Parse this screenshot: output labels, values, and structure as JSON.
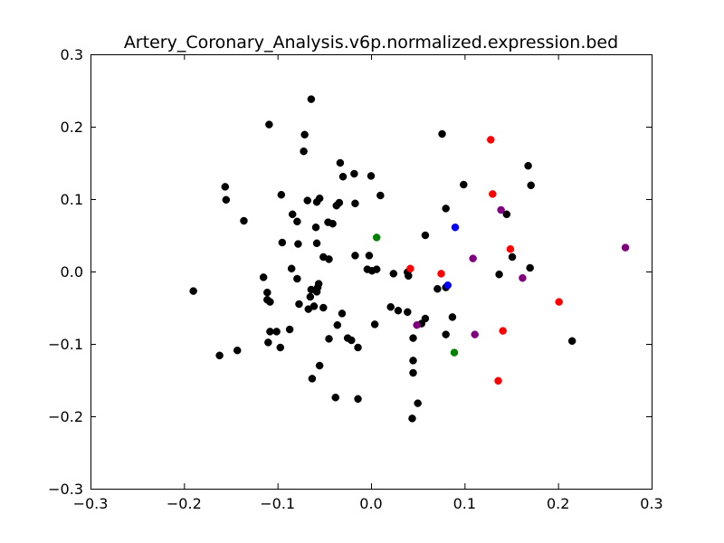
{
  "chart_data": {
    "type": "scatter",
    "title": "Artery_Coronary_Analysis.v6p.normalized.expression.bed",
    "xlabel": "",
    "ylabel": "",
    "xlim": [
      -0.3,
      0.3
    ],
    "ylim": [
      -0.3,
      0.3
    ],
    "grid": false,
    "legend": "none",
    "x_ticks": [
      -0.3,
      -0.2,
      -0.1,
      0.0,
      0.1,
      0.2,
      0.3
    ],
    "y_ticks": [
      -0.3,
      -0.2,
      -0.1,
      0.0,
      0.1,
      0.2,
      0.3
    ],
    "x_tick_labels": [
      "−0.3",
      "−0.2",
      "−0.1",
      "0.0",
      "0.1",
      "0.2",
      "0.3"
    ],
    "y_tick_labels": [
      "−0.3",
      "−0.2",
      "−0.1",
      "0.0",
      "0.1",
      "0.2",
      "0.3"
    ],
    "series": [
      {
        "color": "#000000",
        "points": [
          [
            -0.064,
            0.238
          ],
          [
            -0.109,
            0.203
          ],
          [
            0.076,
            0.19
          ],
          [
            -0.071,
            0.189
          ],
          [
            -0.072,
            0.166
          ],
          [
            0.168,
            0.146
          ],
          [
            -0.033,
            0.15
          ],
          [
            -0.018,
            0.135
          ],
          [
            -0.03,
            0.131
          ],
          [
            0.0,
            0.132
          ],
          [
            0.099,
            0.12
          ],
          [
            0.171,
            0.119
          ],
          [
            -0.156,
            0.117
          ],
          [
            -0.155,
            0.099
          ],
          [
            -0.096,
            0.106
          ],
          [
            -0.055,
            0.101
          ],
          [
            -0.068,
            0.098
          ],
          [
            -0.058,
            0.096
          ],
          [
            -0.034,
            0.095
          ],
          [
            -0.037,
            0.091
          ],
          [
            -0.017,
            0.094
          ],
          [
            0.01,
            0.105
          ],
          [
            0.08,
            0.087
          ],
          [
            0.145,
            0.079
          ],
          [
            -0.084,
            0.079
          ],
          [
            -0.079,
            0.069
          ],
          [
            -0.136,
            0.07
          ],
          [
            -0.046,
            0.068
          ],
          [
            -0.041,
            0.066
          ],
          [
            -0.059,
            0.061
          ],
          [
            0.058,
            0.05
          ],
          [
            -0.095,
            0.04
          ],
          [
            -0.078,
            0.038
          ],
          [
            -0.058,
            0.039
          ],
          [
            -0.051,
            0.02
          ],
          [
            -0.045,
            0.017
          ],
          [
            -0.017,
            0.022
          ],
          [
            -0.002,
            0.022
          ],
          [
            -0.085,
            0.004
          ],
          [
            0.151,
            0.02
          ],
          [
            0.17,
            0.005
          ],
          [
            -0.004,
            0.003
          ],
          [
            0.001,
            0.001
          ],
          [
            0.006,
            0.003
          ],
          [
            0.024,
            -0.003
          ],
          [
            0.039,
            -0.001
          ],
          [
            0.04,
            -0.006
          ],
          [
            0.137,
            -0.004
          ],
          [
            -0.115,
            -0.008
          ],
          [
            -0.079,
            -0.01
          ],
          [
            -0.056,
            -0.017
          ],
          [
            -0.057,
            -0.022
          ],
          [
            -0.111,
            -0.029
          ],
          [
            -0.064,
            -0.025
          ],
          [
            -0.058,
            -0.028
          ],
          [
            -0.065,
            -0.035
          ],
          [
            -0.111,
            -0.039
          ],
          [
            -0.108,
            -0.042
          ],
          [
            -0.077,
            -0.045
          ],
          [
            -0.061,
            -0.048
          ],
          [
            -0.067,
            -0.052
          ],
          [
            -0.051,
            -0.05
          ],
          [
            0.021,
            -0.049
          ],
          [
            0.029,
            -0.054
          ],
          [
            0.039,
            -0.056
          ],
          [
            -0.031,
            -0.058
          ],
          [
            0.071,
            -0.024
          ],
          [
            0.08,
            -0.022
          ],
          [
            0.087,
            -0.063
          ],
          [
            0.058,
            -0.065
          ],
          [
            0.054,
            -0.072
          ],
          [
            -0.036,
            -0.074
          ],
          [
            0.004,
            -0.073
          ],
          [
            -0.19,
            -0.027
          ],
          [
            -0.108,
            -0.083
          ],
          [
            -0.101,
            -0.083
          ],
          [
            -0.087,
            -0.08
          ],
          [
            0.08,
            -0.087
          ],
          [
            0.045,
            -0.092
          ],
          [
            -0.045,
            -0.093
          ],
          [
            -0.025,
            -0.092
          ],
          [
            -0.021,
            -0.095
          ],
          [
            -0.11,
            -0.098
          ],
          [
            -0.097,
            -0.105
          ],
          [
            -0.014,
            -0.105
          ],
          [
            0.215,
            -0.096
          ],
          [
            -0.143,
            -0.109
          ],
          [
            -0.162,
            -0.116
          ],
          [
            0.045,
            -0.123
          ],
          [
            -0.055,
            -0.13
          ],
          [
            0.045,
            -0.14
          ],
          [
            -0.063,
            -0.148
          ],
          [
            -0.038,
            -0.174
          ],
          [
            -0.014,
            -0.176
          ],
          [
            0.05,
            -0.182
          ],
          [
            0.044,
            -0.203
          ]
        ]
      },
      {
        "color": "#ff0000",
        "points": [
          [
            0.128,
            0.182
          ],
          [
            0.13,
            0.107
          ],
          [
            0.149,
            0.031
          ],
          [
            0.042,
            0.004
          ],
          [
            0.075,
            -0.003
          ],
          [
            0.201,
            -0.042
          ],
          [
            0.141,
            -0.082
          ],
          [
            0.136,
            -0.151
          ]
        ]
      },
      {
        "color": "#0000ff",
        "points": [
          [
            0.09,
            0.061
          ],
          [
            0.082,
            -0.019
          ]
        ]
      },
      {
        "color": "#008000",
        "points": [
          [
            0.006,
            0.047
          ],
          [
            0.089,
            -0.112
          ]
        ]
      },
      {
        "color": "#800080",
        "points": [
          [
            0.139,
            0.085
          ],
          [
            0.272,
            0.033
          ],
          [
            0.109,
            0.018
          ],
          [
            0.162,
            -0.009
          ],
          [
            0.049,
            -0.074
          ],
          [
            0.111,
            -0.087
          ]
        ]
      }
    ]
  }
}
